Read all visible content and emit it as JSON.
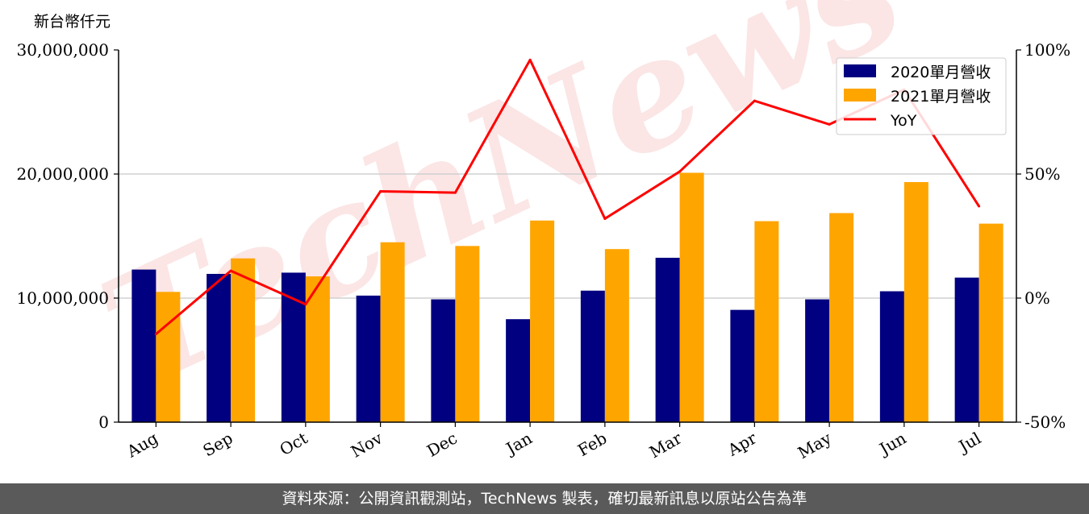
{
  "chart_data": {
    "type": "bar",
    "unit_label": "新台幣仟元",
    "categories": [
      "Aug",
      "Sep",
      "Oct",
      "Nov",
      "Dec",
      "Jan",
      "Feb",
      "Mar",
      "Apr",
      "May",
      "Jun",
      "Jul"
    ],
    "series": [
      {
        "name": "2020單月營收",
        "color": "#000080",
        "values": [
          12300000,
          11950000,
          12050000,
          10200000,
          9900000,
          8300000,
          10600000,
          13250000,
          9050000,
          9900000,
          10550000,
          11650000
        ]
      },
      {
        "name": "2021單月營收",
        "color": "#ffa500",
        "values": [
          10500000,
          13200000,
          11750000,
          14500000,
          14200000,
          16250000,
          13950000,
          20100000,
          16200000,
          16850000,
          19350000,
          16000000
        ]
      }
    ],
    "line_series": [
      {
        "name": "YoY",
        "color": "#ff0000",
        "axis": "right",
        "values": [
          -14.5,
          11,
          -2.5,
          43,
          42.5,
          96,
          32,
          51,
          79.5,
          70,
          84,
          37
        ]
      }
    ],
    "ylim_left": [
      0,
      30000000
    ],
    "yticks_left": [
      "0",
      "10,000,000",
      "20,000,000",
      "30,000,000"
    ],
    "ylim_right": [
      -50,
      100
    ],
    "yticks_right": [
      "-50%",
      "0%",
      "50%",
      "100%"
    ],
    "grid": "horizontal",
    "legend_position": "top-right",
    "watermark": "TechNews"
  },
  "footer": {
    "source_text": "資料來源：公開資訊觀測站，TechNews 製表，確切最新訊息以原站公告為準"
  }
}
